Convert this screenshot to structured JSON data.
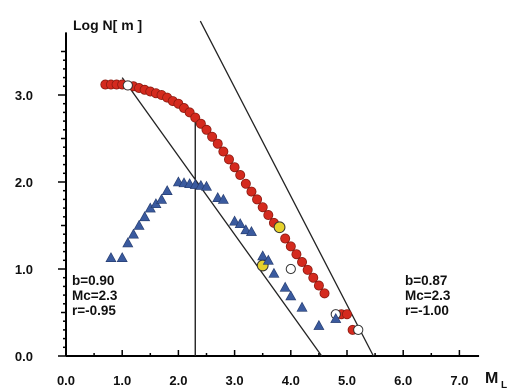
{
  "chart_data": {
    "type": "scatter",
    "ylabel": "Log N[ m ]",
    "xlabel": "M",
    "xlabel_subscript": "L",
    "xlim": [
      0.0,
      7.0
    ],
    "ylim": [
      0.0,
      3.5
    ],
    "x_ticks": [
      "0.0",
      "1.0",
      "2.0",
      "3.0",
      "4.0",
      "5.0",
      "6.0",
      "7.0"
    ],
    "y_ticks": [
      "0.0",
      "1.0",
      "2.0",
      "3.0"
    ],
    "colors": {
      "red_fill": "#d42a1e",
      "red_edge": "#8a1a10",
      "blue_fill": "#3a5a9e",
      "highlight": "#e6d12c"
    },
    "series": [
      {
        "marker": "red-circle",
        "points": [
          [
            0.7,
            3.12
          ],
          [
            0.8,
            3.12
          ],
          [
            0.9,
            3.12
          ],
          [
            1.0,
            3.12
          ],
          [
            1.1,
            3.11
          ],
          [
            1.2,
            3.1
          ],
          [
            1.3,
            3.08
          ],
          [
            1.4,
            3.06
          ],
          [
            1.5,
            3.04
          ],
          [
            1.6,
            3.02
          ],
          [
            1.7,
            3.0
          ],
          [
            1.8,
            2.97
          ],
          [
            1.9,
            2.93
          ],
          [
            2.0,
            2.9
          ],
          [
            2.1,
            2.85
          ],
          [
            2.2,
            2.8
          ],
          [
            2.3,
            2.74
          ],
          [
            2.4,
            2.67
          ],
          [
            2.5,
            2.6
          ],
          [
            2.6,
            2.52
          ],
          [
            2.7,
            2.44
          ],
          [
            2.8,
            2.35
          ],
          [
            2.9,
            2.26
          ],
          [
            3.0,
            2.17
          ],
          [
            3.1,
            2.08
          ],
          [
            3.2,
            1.98
          ],
          [
            3.3,
            1.89
          ],
          [
            3.4,
            1.8
          ],
          [
            3.5,
            1.71
          ],
          [
            3.6,
            1.62
          ],
          [
            3.7,
            1.53
          ],
          [
            3.9,
            1.35
          ],
          [
            4.0,
            1.26
          ],
          [
            4.1,
            1.17
          ],
          [
            4.2,
            1.08
          ],
          [
            4.3,
            0.99
          ],
          [
            4.4,
            0.9
          ],
          [
            4.5,
            0.81
          ],
          [
            4.6,
            0.72
          ],
          [
            4.9,
            0.48
          ],
          [
            5.0,
            0.48
          ],
          [
            5.1,
            0.3
          ]
        ]
      },
      {
        "marker": "open-circle",
        "points": [
          [
            1.1,
            3.11
          ],
          [
            4.0,
            1.0
          ],
          [
            4.8,
            0.48
          ],
          [
            5.2,
            0.3
          ]
        ]
      },
      {
        "marker": "yellow-circle",
        "points": [
          [
            3.8,
            1.48
          ],
          [
            3.5,
            1.04
          ]
        ]
      },
      {
        "marker": "blue-triangle",
        "points": [
          [
            0.8,
            1.13
          ],
          [
            1.0,
            1.13
          ],
          [
            1.1,
            1.3
          ],
          [
            1.2,
            1.4
          ],
          [
            1.3,
            1.5
          ],
          [
            1.4,
            1.6
          ],
          [
            1.5,
            1.7
          ],
          [
            1.6,
            1.75
          ],
          [
            1.7,
            1.8
          ],
          [
            1.8,
            1.9
          ],
          [
            2.0,
            2.0
          ],
          [
            2.1,
            1.99
          ],
          [
            2.2,
            1.98
          ],
          [
            2.3,
            1.97
          ],
          [
            2.4,
            1.96
          ],
          [
            2.5,
            1.95
          ],
          [
            2.7,
            1.82
          ],
          [
            2.8,
            1.8
          ],
          [
            3.0,
            1.55
          ],
          [
            3.1,
            1.52
          ],
          [
            3.2,
            1.45
          ],
          [
            3.3,
            1.43
          ],
          [
            3.5,
            1.15
          ],
          [
            3.6,
            1.1
          ],
          [
            3.7,
            0.95
          ],
          [
            3.9,
            0.79
          ],
          [
            4.0,
            0.69
          ],
          [
            4.2,
            0.56
          ],
          [
            4.5,
            0.35
          ],
          [
            4.8,
            0.43
          ]
        ]
      }
    ],
    "fit_lines": [
      {
        "points": [
          [
            1.0,
            3.2
          ],
          [
            4.55,
            0.0
          ]
        ]
      },
      {
        "points": [
          [
            1.47,
            5.0
          ],
          [
            5.47,
            0.0
          ]
        ]
      }
    ],
    "mc_line": {
      "x": 2.3,
      "y_top": 2.72
    },
    "annotations": [
      {
        "lines": [
          "b=0.90",
          "Mc=2.3",
          "r=-0.95"
        ],
        "position": "left"
      },
      {
        "lines": [
          "b=0.87",
          "Mc=2.3",
          "r=-1.00"
        ],
        "position": "right"
      }
    ]
  }
}
